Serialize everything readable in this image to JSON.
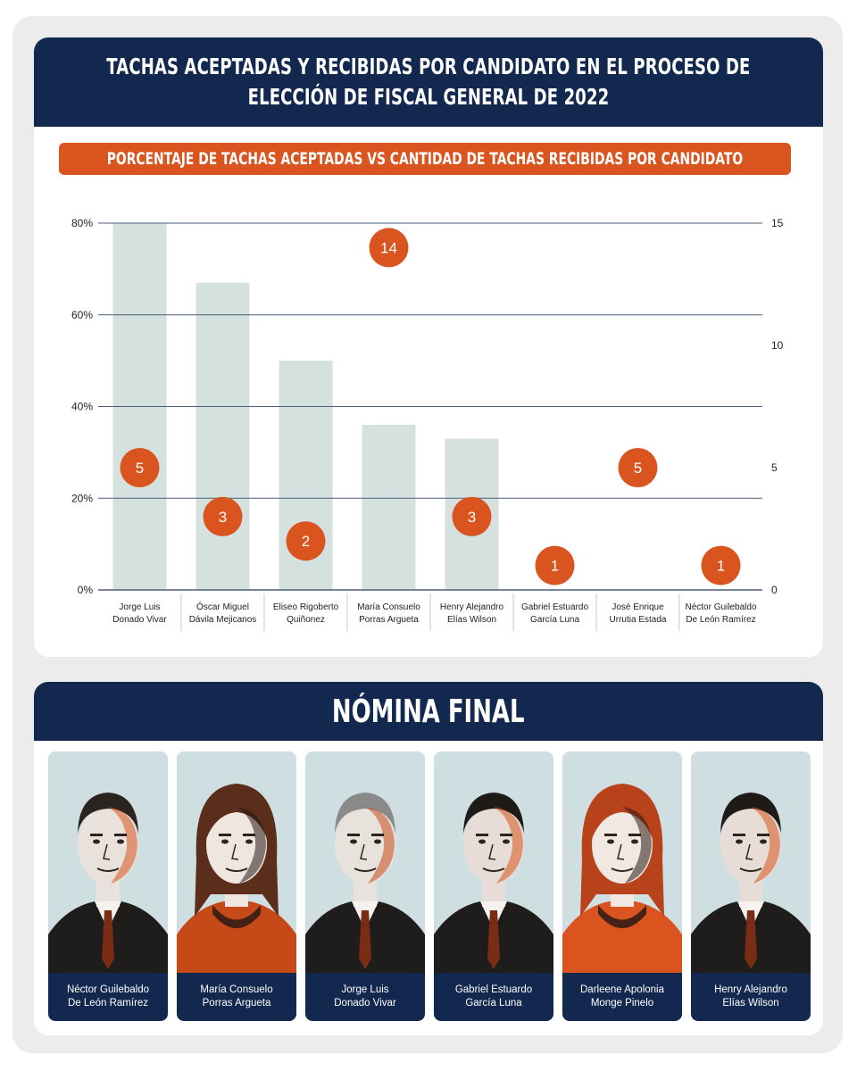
{
  "header": {
    "title_line1": "TACHAS ACEPTADAS Y RECIBIDAS POR CANDIDATO EN EL PROCESO DE",
    "title_line2": "ELECCIÓN DE FISCAL GENERAL DE 2022",
    "subtitle": "PORCENTAJE DE TACHAS ACEPTADAS VS CANTIDAD DE TACHAS RECIBIDAS POR CANDIDATO"
  },
  "chart_data": {
    "type": "bar",
    "categories": [
      [
        "Jorge Luis",
        "Donado Vivar"
      ],
      [
        "Óscar Miguel",
        "Dávila Mejicanos"
      ],
      [
        "Eliseo Rigoberto",
        "Quiñonez"
      ],
      [
        "María Consuelo",
        "Porras Argueta"
      ],
      [
        "Henry Alejandro",
        "Elías Wilson"
      ],
      [
        "Gabriel Estuardo",
        "García Luna"
      ],
      [
        "José Enrique",
        "Urrutia Estada"
      ],
      [
        "Néctor Guilebaldo",
        "De León Ramírez"
      ]
    ],
    "series": [
      {
        "type": "bar",
        "axis": "left",
        "values": [
          80,
          67,
          50,
          36,
          33,
          0,
          0,
          0
        ]
      },
      {
        "type": "scatter",
        "axis": "right",
        "values": [
          5,
          3,
          2,
          14,
          3,
          1,
          5,
          1
        ]
      }
    ],
    "y_left": {
      "ylim": [
        0,
        80
      ],
      "ticks": [
        "0%",
        "20%",
        "40%",
        "60%",
        "80%"
      ],
      "tick_values": [
        0,
        20,
        40,
        60,
        80
      ]
    },
    "y_right": {
      "ylim": [
        0,
        15
      ],
      "ticks": [
        "0",
        "5",
        "10",
        "15"
      ],
      "tick_values": [
        0,
        5,
        10,
        15
      ]
    },
    "grid": true,
    "colors": {
      "bar": "#d4e1df",
      "bubble": "#d9541e",
      "grid": "#4a5f7a"
    }
  },
  "nomina": {
    "title": "NÓMINA FINAL",
    "candidates": [
      {
        "line1": "Néctor Guilebaldo",
        "line2": "De León Ramírez"
      },
      {
        "line1": "María Consuelo",
        "line2": "Porras Argueta"
      },
      {
        "line1": "Jorge Luis",
        "line2": "Donado Vivar"
      },
      {
        "line1": "Gabriel Estuardo",
        "line2": "García Luna"
      },
      {
        "line1": "Darleene Apolonia",
        "line2": "Monge Pinelo"
      },
      {
        "line1": "Henry Alejandro",
        "line2": "Elías Wilson"
      }
    ]
  },
  "colors": {
    "navy": "#13284e",
    "orange": "#d9541e",
    "panel": "#ececec"
  }
}
